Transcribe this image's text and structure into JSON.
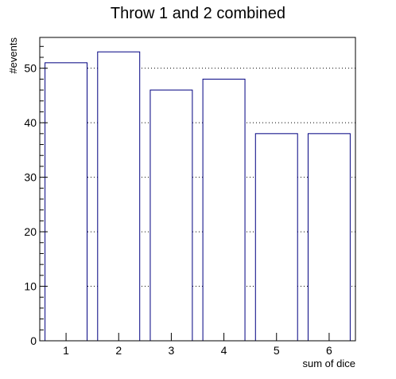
{
  "chart_data": {
    "type": "bar",
    "title": "Throw 1 and 2 combined",
    "xlabel": "sum of dice",
    "ylabel": "#events",
    "categories": [
      "1",
      "2",
      "3",
      "4",
      "5",
      "6"
    ],
    "values": [
      51,
      53,
      46,
      48,
      38,
      38
    ],
    "ylim": [
      0,
      55.65
    ],
    "yticks": [
      0,
      10,
      20,
      30,
      40,
      50
    ],
    "grid": true,
    "bar_color": "#000080",
    "bar_fill": "#ffffff"
  }
}
